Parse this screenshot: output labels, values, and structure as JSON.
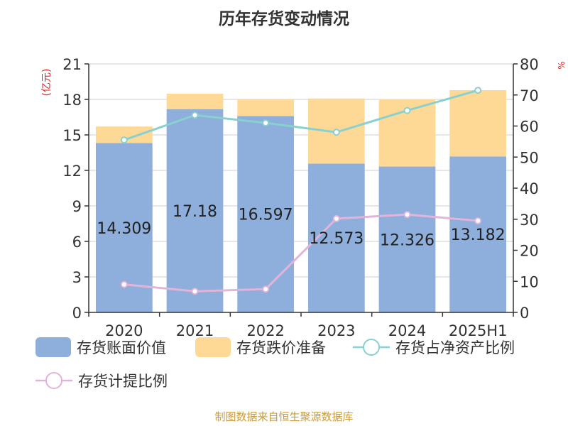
{
  "chart_data": {
    "type": "bar",
    "title": "历年存货变动情况",
    "ylabel_left": "(亿元)",
    "ylabel_right": "%",
    "categories": [
      "2020",
      "2021",
      "2022",
      "2023",
      "2024",
      "2025H1"
    ],
    "left_axis": {
      "min": 0,
      "max": 21,
      "ticks": [
        "0",
        "3",
        "6",
        "9",
        "12",
        "15",
        "18",
        "21"
      ]
    },
    "right_axis": {
      "min": 0,
      "max": 80,
      "ticks": [
        "0",
        "10",
        "20",
        "30",
        "40",
        "50",
        "60",
        "70",
        "80"
      ]
    },
    "stacked": true,
    "grid": true,
    "legend_position": "bottom",
    "bar_series": [
      {
        "name": "存货账面价值",
        "color": "#8eaedb",
        "values": [
          14.309,
          17.18,
          16.597,
          12.573,
          12.326,
          13.182
        ],
        "labels": [
          "14.309",
          "17.18",
          "16.597",
          "12.573",
          "12.326",
          "13.182"
        ]
      },
      {
        "name": "存货跌价准备",
        "color": "#fed996",
        "values": [
          1.4,
          1.3,
          1.4,
          5.5,
          5.7,
          5.6
        ]
      }
    ],
    "line_series": [
      {
        "name": "存货占净资产比例",
        "color": "#88d1d0",
        "axis": "right",
        "values": [
          55.5,
          63.5,
          61.0,
          58.0,
          65.0,
          71.5
        ]
      },
      {
        "name": "存货计提比例",
        "color": "#e1b5d9",
        "axis": "right",
        "values": [
          9.0,
          6.8,
          7.5,
          30.2,
          31.5,
          29.5
        ]
      }
    ],
    "footer": "制图数据来自恒生聚源数据库"
  }
}
